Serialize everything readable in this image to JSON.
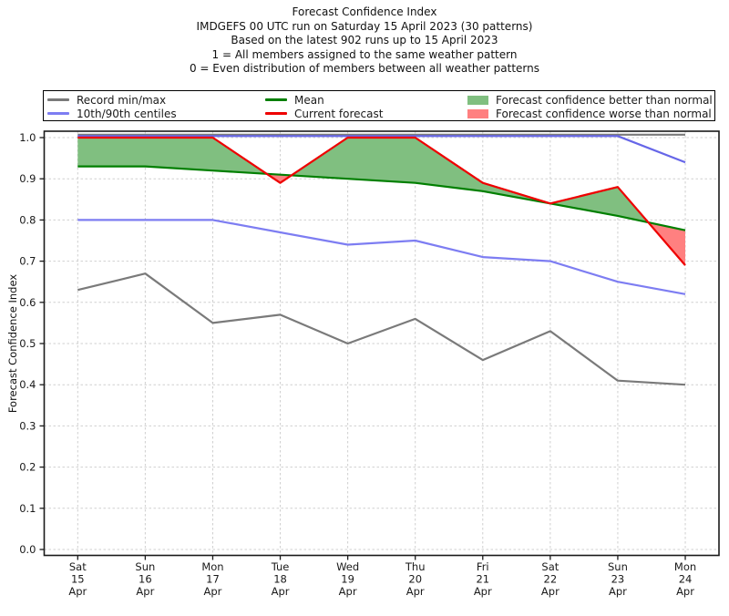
{
  "header": {
    "lines": [
      "Forecast Confidence Index",
      "IMDGEFS 00 UTC run on Saturday 15 April 2023 (30 patterns)",
      "Based on the latest 902 runs up to 15 April 2023",
      "1 = All members assigned to the same weather pattern",
      "0 = Even distribution of members between all weather patterns"
    ]
  },
  "legend": {
    "items": [
      {
        "label": "Record min/max",
        "swatch": "line",
        "color": "#7a7a7a"
      },
      {
        "label": "10th/90th centiles",
        "swatch": "line",
        "color": "#7d7df2"
      },
      {
        "label": "Mean",
        "swatch": "line",
        "color": "#007f00"
      },
      {
        "label": "Current forecast",
        "swatch": "line",
        "color": "#ee0000"
      },
      {
        "label": "Forecast confidence better than normal",
        "swatch": "patch",
        "color": "#80bf80"
      },
      {
        "label": "Forecast confidence worse than normal",
        "swatch": "patch",
        "color": "#ff8080"
      }
    ]
  },
  "chart_data": {
    "type": "line",
    "title": "Forecast Confidence Index",
    "ylabel": "Forecast Confidence Index",
    "ylim": [
      0.0,
      1.0
    ],
    "grid": true,
    "legend_position": "top",
    "yticks": [
      "0.0",
      "0.1",
      "0.2",
      "0.3",
      "0.4",
      "0.5",
      "0.6",
      "0.7",
      "0.8",
      "0.9",
      "1.0"
    ],
    "x_tick_lines": [
      [
        "Sat",
        "15",
        "Apr"
      ],
      [
        "Sun",
        "16",
        "Apr"
      ],
      [
        "Mon",
        "17",
        "Apr"
      ],
      [
        "Tue",
        "18",
        "Apr"
      ],
      [
        "Wed",
        "19",
        "Apr"
      ],
      [
        "Thu",
        "20",
        "Apr"
      ],
      [
        "Fri",
        "21",
        "Apr"
      ],
      [
        "Sat",
        "22",
        "Apr"
      ],
      [
        "Sun",
        "23",
        "Apr"
      ],
      [
        "Mon",
        "24",
        "Apr"
      ]
    ],
    "series": [
      {
        "name": "Record min",
        "role": "record_min",
        "color": "#7a7a7a",
        "values": [
          0.63,
          0.67,
          0.55,
          0.57,
          0.5,
          0.56,
          0.46,
          0.53,
          0.41,
          0.4
        ]
      },
      {
        "name": "Record max",
        "role": "record_max",
        "color": "#7a7a7a",
        "values": [
          1.0,
          1.0,
          1.0,
          1.0,
          1.0,
          1.0,
          1.0,
          1.0,
          1.0,
          1.0
        ]
      },
      {
        "name": "10th centile",
        "role": "centile_10",
        "color": "#7d7df2",
        "values": [
          0.8,
          0.8,
          0.8,
          0.77,
          0.74,
          0.75,
          0.71,
          0.7,
          0.65,
          0.62
        ]
      },
      {
        "name": "90th centile",
        "role": "centile_90",
        "color": "#6666e8",
        "values": [
          1.0,
          1.0,
          1.0,
          1.0,
          1.0,
          1.0,
          1.0,
          1.0,
          1.0,
          0.94
        ]
      },
      {
        "name": "Mean",
        "role": "mean",
        "color": "#007f00",
        "values": [
          0.93,
          0.93,
          0.92,
          0.91,
          0.9,
          0.89,
          0.87,
          0.84,
          0.81,
          0.775
        ]
      },
      {
        "name": "Current forecast",
        "role": "current",
        "color": "#ee0000",
        "values": [
          1.0,
          1.0,
          1.0,
          0.89,
          1.0,
          1.0,
          0.89,
          0.84,
          0.88,
          0.69
        ]
      }
    ],
    "fills": {
      "between": [
        "Current forecast",
        "Mean"
      ],
      "better_color": "#80bf80",
      "worse_color": "#ff8080"
    },
    "colors": {
      "grid": "#cfcfcf",
      "spine": "#1a1a1a",
      "text": "#1a1a1a"
    }
  }
}
